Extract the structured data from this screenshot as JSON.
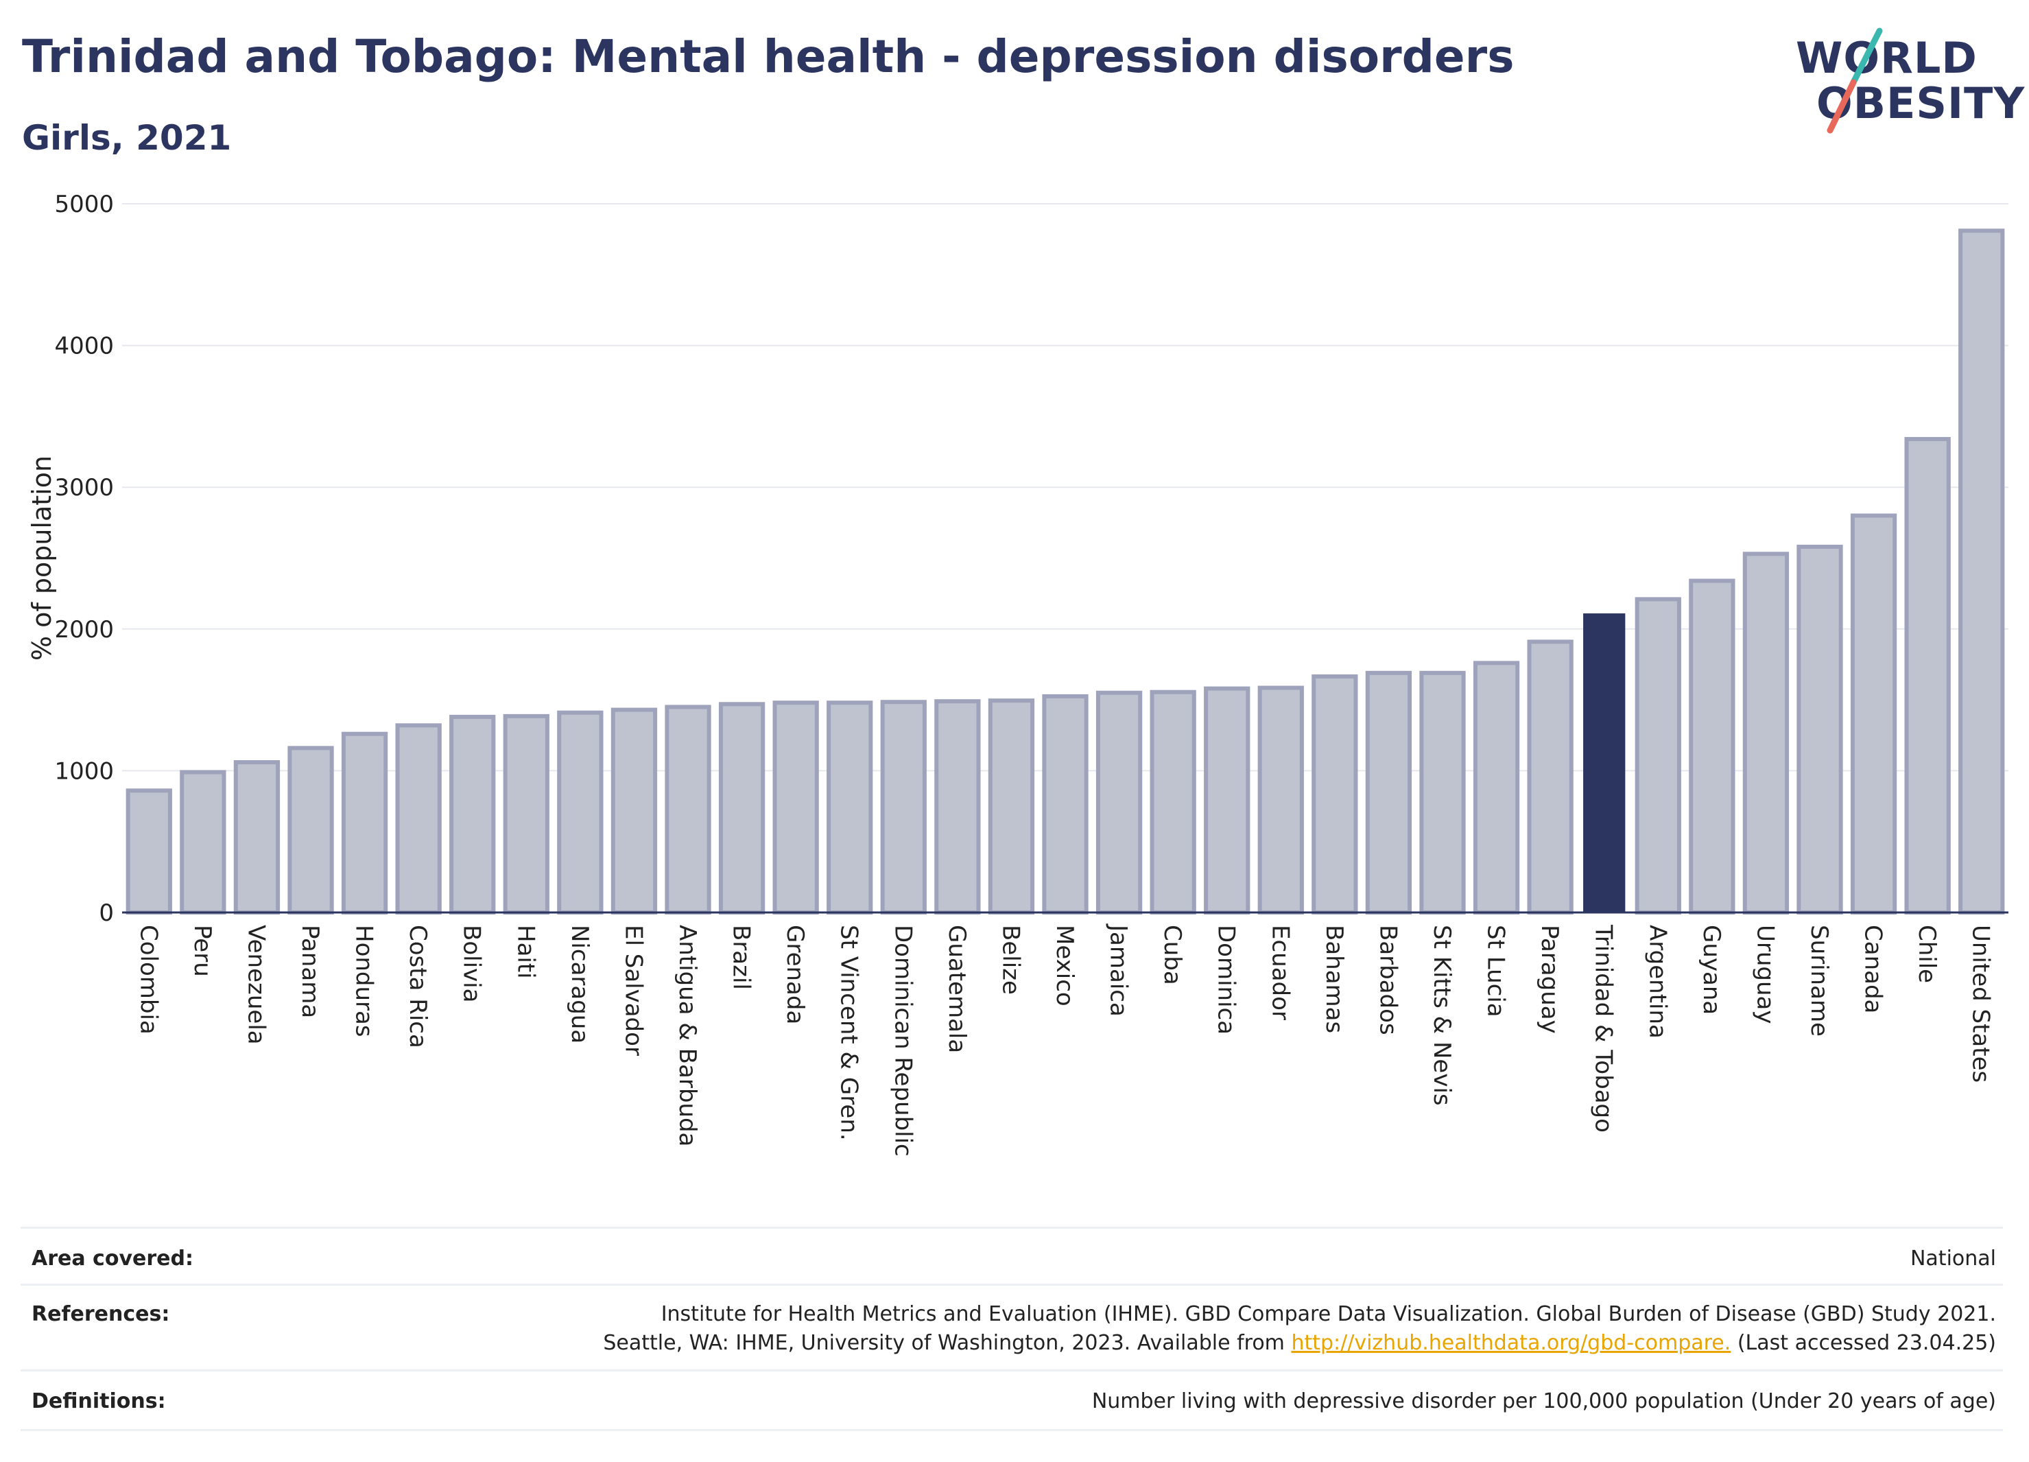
{
  "header": {
    "title": "Trinidad and Tobago: Mental health - depression disorders",
    "subtitle": "Girls, 2021"
  },
  "logo": {
    "line1": "WORLD",
    "line2": "OBESITY",
    "colors": {
      "teal": "#3ab8b0",
      "coral": "#e8685a",
      "navy": "#2b3560"
    }
  },
  "chart_data": {
    "type": "bar",
    "title": "Trinidad and Tobago: Mental health - depression disorders",
    "subtitle": "Girls, 2021",
    "xlabel": "",
    "ylabel": "% of population",
    "ylim": [
      0,
      5000
    ],
    "yticks": [
      0,
      1000,
      2000,
      3000,
      4000,
      5000
    ],
    "grid": true,
    "highlight": "Trinidad & Tobago",
    "colors": {
      "bar": "#bfc2cf",
      "bar_edge": "#9ea3bb",
      "highlight": "#2b3560"
    },
    "categories": [
      "Colombia",
      "Peru",
      "Venezuela",
      "Panama",
      "Honduras",
      "Costa Rica",
      "Bolivia",
      "Haiti",
      "Nicaragua",
      "El Salvador",
      "Antigua & Barbuda",
      "Brazil",
      "Grenada",
      "St Vincent & Gren.",
      "Dominican Republic",
      "Guatemala",
      "Belize",
      "Mexico",
      "Jamaica",
      "Cuba",
      "Dominica",
      "Ecuador",
      "Bahamas",
      "Barbados",
      "St Kitts & Nevis",
      "St Lucia",
      "Paraguay",
      "Trinidad & Tobago",
      "Argentina",
      "Guyana",
      "Uruguay",
      "Suriname",
      "Canada",
      "Chile",
      "United States"
    ],
    "values": [
      860,
      990,
      1060,
      1160,
      1260,
      1320,
      1380,
      1385,
      1410,
      1430,
      1450,
      1470,
      1480,
      1480,
      1485,
      1490,
      1495,
      1525,
      1550,
      1555,
      1580,
      1585,
      1665,
      1690,
      1690,
      1760,
      1910,
      2110,
      2210,
      2340,
      2530,
      2580,
      2800,
      3340,
      4810
    ]
  },
  "footer": {
    "area_label": "Area covered:",
    "area_value": "National",
    "references_label": "References:",
    "references_line1": "Institute for Health Metrics and Evaluation (IHME). GBD Compare Data Visualization. Global Burden of Disease (GBD) Study 2021.",
    "references_line2_pre": "Seattle, WA: IHME, University of Washington, 2023. Available from ",
    "references_link": "http://vizhub.healthdata.org/gbd-compare.",
    "references_line2_post": " (Last accessed 23.04.25)",
    "definitions_label": "Definitions:",
    "definitions_value": "Number living with depressive disorder per 100,000 population (Under 20 years of age)"
  }
}
